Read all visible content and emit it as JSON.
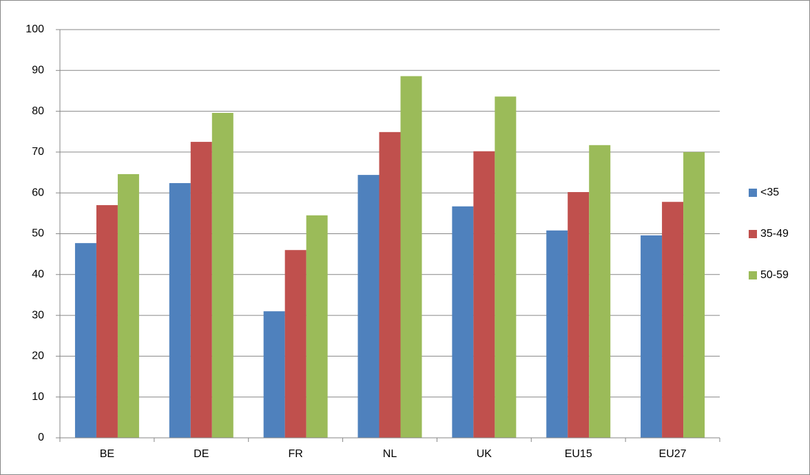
{
  "chart_data": {
    "type": "bar",
    "categories": [
      "BE",
      "DE",
      "FR",
      "NL",
      "UK",
      "EU15",
      "EU27"
    ],
    "series": [
      {
        "name": "<35",
        "color": "#4f81bd",
        "values": [
          47.7,
          62.4,
          31.0,
          64.4,
          56.7,
          50.8,
          49.6
        ]
      },
      {
        "name": "35-49",
        "color": "#c0504d",
        "values": [
          57.0,
          72.5,
          46.0,
          74.9,
          70.2,
          60.2,
          57.8
        ]
      },
      {
        "name": "50-59",
        "color": "#9bbb59",
        "values": [
          64.6,
          79.6,
          54.5,
          88.6,
          83.6,
          71.7,
          70.0
        ]
      }
    ],
    "ylim": [
      0,
      100
    ],
    "yticks": [
      0,
      10,
      20,
      30,
      40,
      50,
      60,
      70,
      80,
      90,
      100
    ],
    "grid": true,
    "legend": "right"
  }
}
